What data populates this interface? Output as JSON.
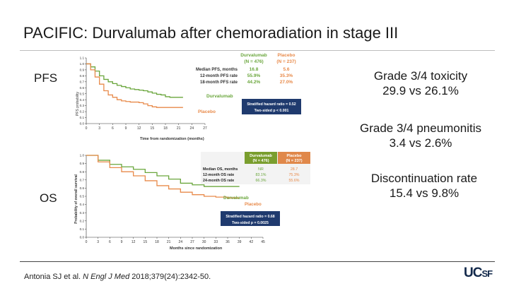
{
  "slide": {
    "title": "PACIFIC: Durvalumab after chemoradiation in stage III",
    "pfs_label": "PFS",
    "os_label": "OS",
    "stats": [
      {
        "line1": "Grade 3/4 toxicity",
        "line2": "29.9 vs 26.1%"
      },
      {
        "line1": "Grade 3/4 pneumonitis",
        "line2": "3.4 vs 2.6%"
      },
      {
        "line1": "Discontinuation rate",
        "line2": "15.4 vs 9.8%"
      }
    ],
    "citation": {
      "authors": "Antonia SJ et al. ",
      "journal": "N Engl J Med",
      "rest": " 2018;379(24):2342-50."
    },
    "logo": {
      "main": "UC",
      "sub": "SF"
    },
    "colors": {
      "durvalumab": "#6aa63c",
      "placebo": "#e88a4a",
      "hr_box": "#1f3a6e",
      "table_header_durva": "#7a9e2e",
      "table_header_placebo": "#e0884a"
    }
  },
  "chart_data": [
    {
      "type": "line",
      "ylabel": "PFS probability",
      "xlabel": "Time from randomization (months)",
      "xlim": [
        0,
        27
      ],
      "ylim": [
        0,
        1.1
      ],
      "x_ticks": [
        "0",
        "3",
        "6",
        "9",
        "12",
        "15",
        "18",
        "21",
        "24",
        "27"
      ],
      "y_ticks": [
        "0.0",
        "0.1",
        "0.2",
        "0.3",
        "0.4",
        "0.5",
        "0.6",
        "0.7",
        "0.8",
        "0.9",
        "1.0",
        "1.1"
      ],
      "series": [
        {
          "name": "Durvalumab",
          "x": [
            0,
            1,
            2,
            3,
            4,
            5,
            6,
            7,
            8,
            9,
            10,
            11,
            12,
            13,
            14,
            15,
            16,
            17,
            18,
            19,
            20,
            21,
            22
          ],
          "values": [
            1.0,
            0.95,
            0.88,
            0.8,
            0.74,
            0.7,
            0.67,
            0.64,
            0.62,
            0.6,
            0.58,
            0.57,
            0.56,
            0.55,
            0.53,
            0.51,
            0.49,
            0.48,
            0.45,
            0.44,
            0.44,
            0.44,
            0.44
          ]
        },
        {
          "name": "Placebo",
          "x": [
            0,
            1,
            2,
            3,
            4,
            5,
            6,
            7,
            8,
            9,
            10,
            11,
            12,
            13,
            14,
            15,
            16,
            17,
            18,
            19,
            20,
            21,
            22
          ],
          "values": [
            1.0,
            0.9,
            0.78,
            0.66,
            0.55,
            0.48,
            0.44,
            0.4,
            0.38,
            0.37,
            0.36,
            0.36,
            0.35,
            0.33,
            0.3,
            0.28,
            0.27,
            0.27,
            0.27,
            0.27,
            0.27,
            0.27,
            0.27
          ]
        }
      ],
      "table": {
        "col_headers": [
          [
            "Durvalumab",
            "(N = 476)"
          ],
          [
            "Placebo",
            "(N = 237)"
          ]
        ],
        "rows": [
          {
            "label": "Median PFS, months",
            "values": [
              "16.8",
              "5.6"
            ]
          },
          {
            "label": "12-month PFS rate",
            "values": [
              "55.9%",
              "35.3%"
            ]
          },
          {
            "label": "18-month PFS rate",
            "values": [
              "44.2%",
              "27.0%"
            ]
          }
        ]
      },
      "annotations": [
        "Stratified hazard ratio = 0.52",
        "Two-sided p < 0.001"
      ],
      "series_labels": [
        "Durvalumab",
        "Placebo"
      ]
    },
    {
      "type": "line",
      "ylabel": "Probability of overall survival",
      "xlabel": "Months since randomization",
      "xlim": [
        0,
        45
      ],
      "ylim": [
        0,
        1.0
      ],
      "x_ticks": [
        "0",
        "3",
        "6",
        "9",
        "12",
        "15",
        "18",
        "21",
        "24",
        "27",
        "30",
        "33",
        "36",
        "39",
        "42",
        "45"
      ],
      "y_ticks": [
        "0.0",
        "0.1",
        "0.2",
        "0.3",
        "0.4",
        "0.5",
        "0.6",
        "0.7",
        "0.8",
        "0.9",
        "1.0"
      ],
      "series": [
        {
          "name": "Durvalumab",
          "x": [
            0,
            3,
            6,
            9,
            12,
            15,
            18,
            21,
            24,
            27,
            30,
            33,
            36,
            39
          ],
          "values": [
            1.0,
            0.94,
            0.89,
            0.86,
            0.83,
            0.79,
            0.75,
            0.71,
            0.66,
            0.64,
            0.62,
            0.62,
            0.62,
            0.62
          ]
        },
        {
          "name": "Placebo",
          "x": [
            0,
            3,
            6,
            9,
            12,
            15,
            18,
            21,
            24,
            27,
            30,
            33,
            36,
            39
          ],
          "values": [
            1.0,
            0.92,
            0.85,
            0.8,
            0.75,
            0.69,
            0.63,
            0.59,
            0.55,
            0.52,
            0.5,
            0.49,
            0.48,
            0.48
          ]
        }
      ],
      "table": {
        "col_headers": [
          [
            "Durvalumab",
            "(N = 476)"
          ],
          [
            "Placebo",
            "(N = 237)"
          ]
        ],
        "rows": [
          {
            "label": "Median OS, months",
            "values": [
              "NR",
              "28.7"
            ]
          },
          {
            "label": "12-month OS rate",
            "values": [
              "83.1%",
              "75.3%"
            ]
          },
          {
            "label": "24-month OS rate",
            "values": [
              "66.3%",
              "55.6%"
            ]
          }
        ]
      },
      "annotations": [
        "Stratified hazard ratio = 0.68",
        "Two-sided p = 0.0025"
      ],
      "series_labels": [
        "Durvalumab",
        "Placebo"
      ]
    }
  ]
}
